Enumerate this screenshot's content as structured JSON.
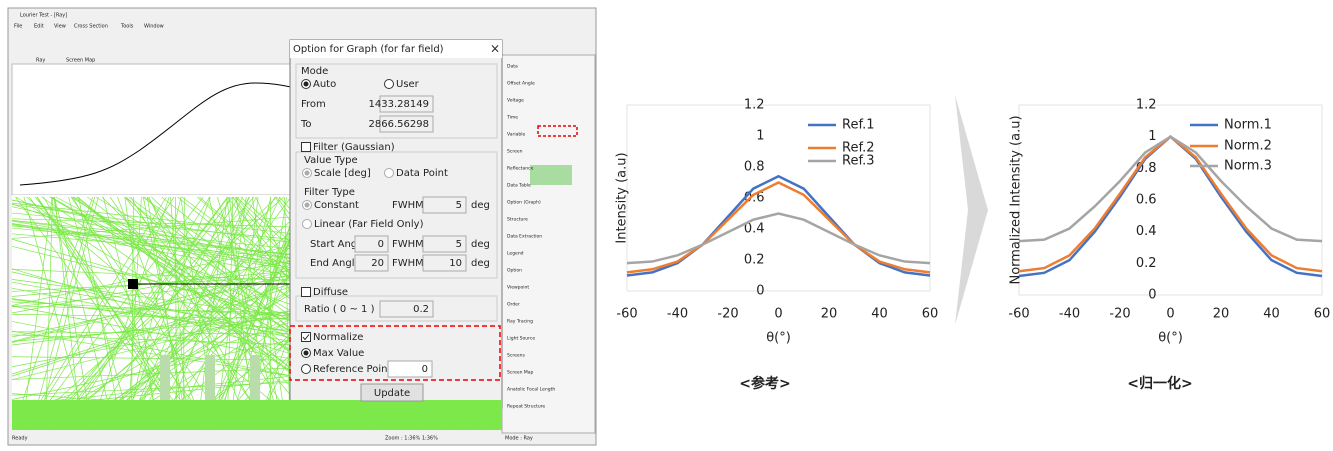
{
  "app": {
    "title": "Lourier Test - [Ray]",
    "menu": [
      "File",
      "Edit",
      "View",
      "Cross Section",
      "Tools",
      "Window"
    ],
    "tabs": [
      "Ray",
      "Screen Map"
    ],
    "status": "Ready",
    "status_zoom": "Zoom : 1:36% 1:36%",
    "status_mode": "Mode : Ray"
  },
  "dialog": {
    "title": "Option for Graph (for far field)",
    "mode": {
      "label": "Mode",
      "auto": "Auto",
      "user": "User",
      "from_label": "From",
      "from": "1433.28149",
      "to_label": "To",
      "to": "2866.56298"
    },
    "filter": {
      "label": "Filter (Gaussian)",
      "value_type": "Value Type",
      "scale": "Scale [deg]",
      "data_point": "Data Point",
      "filter_type": "Filter Type",
      "constant": "Constant",
      "fwhm_label": "FWHM",
      "constant_fwhm": "5",
      "unit": "deg",
      "linear": "Linear (Far Field Only)",
      "start_angle_label": "Start Angle",
      "start_angle": "0",
      "start_fwhm": "5",
      "end_angle_label": "End Angle",
      "end_angle": "20",
      "end_fwhm": "10"
    },
    "diffuse": {
      "label": "Diffuse",
      "ratio_label": "Ratio ( 0 ~ 1 )",
      "ratio": "0.2"
    },
    "normalize": {
      "label": "Normalize",
      "max_value": "Max Value",
      "reference_point": "Reference Point",
      "reference_value": "0"
    },
    "update": "Update"
  },
  "side_panel": {
    "items": [
      "Data",
      "Offset Angle",
      "Voltage",
      "Time",
      "Variable",
      "Screen",
      "Reflectance",
      "Data Table",
      "Option (Graph)",
      "Structure",
      "Data Extraction",
      "Legend",
      "Option",
      "Viewpoint",
      "Order",
      "Ray Tracing",
      "Light Source",
      "Screens",
      "Screen Map",
      "Anatolic Focal Length",
      "Repeat Structure"
    ]
  },
  "chart_data": [
    {
      "type": "line",
      "caption": "<参考>",
      "xlabel": "θ(°)",
      "ylabel": "Intensity (a.u)",
      "x": [
        -60,
        -50,
        -40,
        -30,
        -20,
        -10,
        0,
        10,
        20,
        30,
        40,
        50,
        60
      ],
      "xlim": [
        -60,
        60
      ],
      "xticks": [
        -60,
        -40,
        -20,
        0,
        20,
        40,
        60
      ],
      "ylim": [
        0,
        1.2
      ],
      "yticks": [
        0,
        0.2,
        0.4,
        0.6,
        0.8,
        1,
        1.2
      ],
      "series": [
        {
          "name": "Ref.1",
          "color": "#4472c4",
          "values": [
            0.1,
            0.12,
            0.18,
            0.3,
            0.48,
            0.66,
            0.74,
            0.66,
            0.48,
            0.3,
            0.18,
            0.12,
            0.1
          ]
        },
        {
          "name": "Ref.2",
          "color": "#ed7d31",
          "values": [
            0.12,
            0.14,
            0.19,
            0.3,
            0.46,
            0.62,
            0.7,
            0.62,
            0.46,
            0.3,
            0.19,
            0.14,
            0.12
          ]
        },
        {
          "name": "Ref.3",
          "color": "#a5a5a5",
          "values": [
            0.18,
            0.19,
            0.23,
            0.3,
            0.38,
            0.46,
            0.5,
            0.46,
            0.38,
            0.3,
            0.23,
            0.19,
            0.18
          ]
        }
      ]
    },
    {
      "type": "line",
      "caption": "<归一化>",
      "xlabel": "θ(°)",
      "ylabel": "Normalized Intensity (a.u)",
      "x": [
        -60,
        -50,
        -40,
        -30,
        -20,
        -10,
        0,
        10,
        20,
        30,
        40,
        50,
        60
      ],
      "xlim": [
        -60,
        60
      ],
      "xticks": [
        -60,
        -40,
        -20,
        0,
        20,
        40,
        60
      ],
      "ylim": [
        0,
        1.2
      ],
      "yticks": [
        0,
        0.2,
        0.4,
        0.6,
        0.8,
        1,
        1.2
      ],
      "series": [
        {
          "name": "Norm.1",
          "color": "#4472c4",
          "values": [
            0.12,
            0.14,
            0.22,
            0.4,
            0.62,
            0.86,
            1,
            0.86,
            0.62,
            0.4,
            0.22,
            0.14,
            0.12
          ]
        },
        {
          "name": "Norm.2",
          "color": "#ed7d31",
          "values": [
            0.15,
            0.17,
            0.25,
            0.42,
            0.64,
            0.87,
            1,
            0.87,
            0.64,
            0.42,
            0.25,
            0.17,
            0.15
          ]
        },
        {
          "name": "Norm.3",
          "color": "#a5a5a5",
          "values": [
            0.34,
            0.35,
            0.42,
            0.56,
            0.72,
            0.9,
            1,
            0.9,
            0.72,
            0.56,
            0.42,
            0.35,
            0.34
          ]
        }
      ]
    }
  ]
}
